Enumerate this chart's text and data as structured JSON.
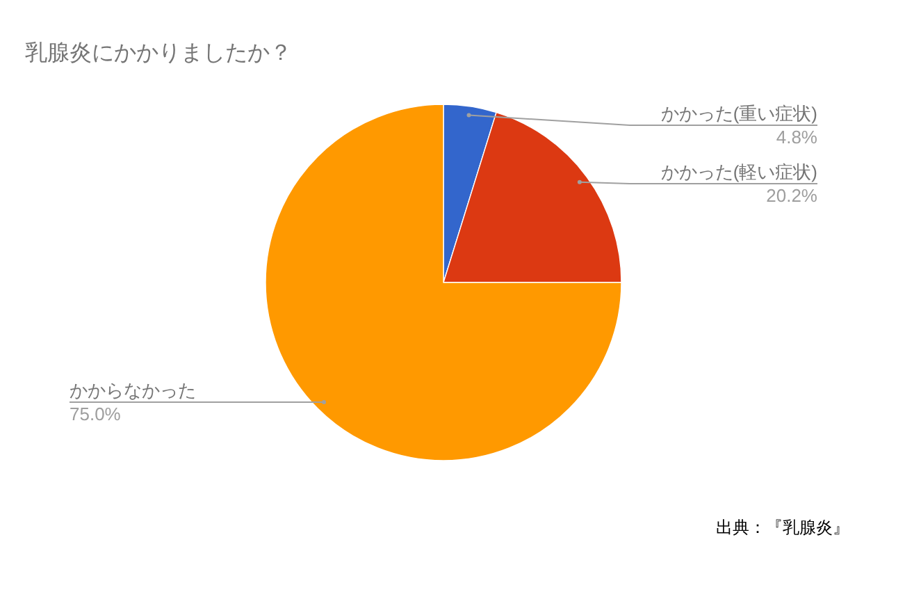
{
  "chart_data": {
    "type": "pie",
    "title": "乳腺炎にかかりましたか？",
    "categories": [
      "かかった(重い症状)",
      "かかった(軽い症状)",
      "かからなかった"
    ],
    "values": [
      4.8,
      20.2,
      75.0
    ],
    "colors": [
      "#3366cc",
      "#dc3912",
      "#ff9900"
    ],
    "value_labels": [
      "4.8%",
      "20.2%",
      "75.0%"
    ],
    "annotations": [
      "出典：『乳腺炎』"
    ]
  }
}
